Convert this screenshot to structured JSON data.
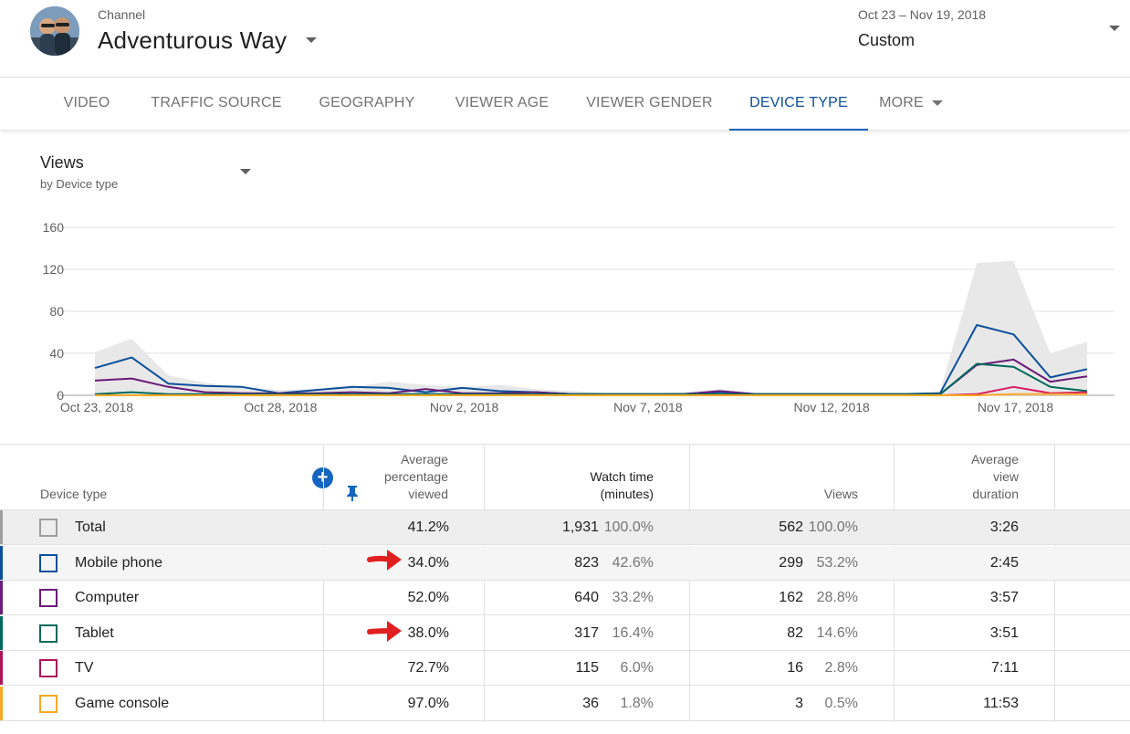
{
  "header": {
    "channel_label": "Channel",
    "channel_name": "Adventurous Way",
    "date_range": "Oct 23 – Nov 19, 2018",
    "date_mode": "Custom"
  },
  "tabs": [
    {
      "label": "VIDEO"
    },
    {
      "label": "TRAFFIC SOURCE"
    },
    {
      "label": "GEOGRAPHY"
    },
    {
      "label": "VIEWER AGE"
    },
    {
      "label": "VIEWER GENDER"
    },
    {
      "label": "DEVICE TYPE",
      "active": true
    },
    {
      "label": "MORE"
    }
  ],
  "metric": {
    "title": "Views",
    "subtitle": "by Device type"
  },
  "chart_data": {
    "type": "line",
    "title": "Views",
    "subtitle": "by Device type",
    "ylim": [
      0,
      160
    ],
    "yticks": [
      0,
      40,
      80,
      120,
      160
    ],
    "x_tick_labels": [
      "Oct 23, 2018",
      "Oct 28, 2018",
      "Nov 2, 2018",
      "Nov 7, 2018",
      "Nov 12, 2018",
      "Nov 17, 2018"
    ],
    "x": [
      "2018-10-23",
      "2018-10-24",
      "2018-10-25",
      "2018-10-26",
      "2018-10-27",
      "2018-10-28",
      "2018-10-29",
      "2018-10-30",
      "2018-10-31",
      "2018-11-01",
      "2018-11-02",
      "2018-11-03",
      "2018-11-04",
      "2018-11-05",
      "2018-11-06",
      "2018-11-07",
      "2018-11-08",
      "2018-11-09",
      "2018-11-10",
      "2018-11-11",
      "2018-11-12",
      "2018-11-13",
      "2018-11-14",
      "2018-11-15",
      "2018-11-16",
      "2018-11-17",
      "2018-11-18",
      "2018-11-19"
    ],
    "grid": true,
    "series": [
      {
        "name": "Total",
        "style": "area",
        "color": "#e8e8e8",
        "values": [
          41,
          54,
          19,
          12,
          8,
          5,
          6,
          8,
          13,
          10,
          8,
          10,
          6,
          4,
          2,
          2,
          3,
          6,
          2,
          2,
          2,
          2,
          2,
          4,
          126,
          128,
          40,
          51
        ]
      },
      {
        "name": "Mobile phone",
        "color": "#0b4f9c",
        "values": [
          26,
          36,
          11,
          9,
          8,
          2,
          5,
          8,
          7,
          3,
          7,
          4,
          3,
          1,
          1,
          1,
          1,
          3,
          1,
          1,
          1,
          1,
          1,
          2,
          67,
          58,
          17,
          25
        ]
      },
      {
        "name": "Computer",
        "color": "#6a1b7a",
        "values": [
          14,
          16,
          8,
          3,
          2,
          2,
          2,
          3,
          2,
          6,
          2,
          2,
          3,
          1,
          1,
          1,
          1,
          4,
          1,
          1,
          1,
          1,
          1,
          1,
          29,
          34,
          13,
          18
        ]
      },
      {
        "name": "Tablet",
        "color": "#00695c",
        "values": [
          1,
          3,
          1,
          1,
          1,
          1,
          1,
          1,
          1,
          1,
          1,
          1,
          1,
          1,
          1,
          1,
          1,
          1,
          1,
          1,
          1,
          1,
          1,
          1,
          30,
          27,
          8,
          4
        ]
      },
      {
        "name": "TV",
        "color": "#d81b60",
        "values": [
          0,
          0,
          0,
          0,
          0,
          0,
          0,
          0,
          0,
          0,
          0,
          0,
          0,
          0,
          0,
          0,
          0,
          0,
          0,
          0,
          0,
          0,
          0,
          0,
          1,
          8,
          2,
          3
        ]
      },
      {
        "name": "Game console",
        "color": "#f9a825",
        "values": [
          0,
          0,
          0,
          0,
          0,
          0,
          0,
          0,
          0,
          0,
          0,
          0,
          0,
          0,
          0,
          0,
          0,
          0,
          0,
          0,
          0,
          0,
          0,
          0,
          0,
          1,
          1,
          1
        ]
      }
    ]
  },
  "table": {
    "headers": {
      "device_type": "Device type",
      "avg_pct_viewed_1": "Average",
      "avg_pct_viewed_2": "percentage",
      "avg_pct_viewed_3": "viewed",
      "watch_time_1": "Watch time",
      "watch_time_2": "(minutes)",
      "views": "Views",
      "avg_dur_1": "Average",
      "avg_dur_2": "view",
      "avg_dur_3": "duration"
    },
    "rows": [
      {
        "name": "Total",
        "color": "#9e9e9e",
        "avg_pct": "41.2%",
        "watch": "1,931",
        "watch_pct": "100.0%",
        "views": "562",
        "views_pct": "100.0%",
        "duration": "3:26"
      },
      {
        "name": "Mobile phone",
        "color": "#0b4f9c",
        "avg_pct": "34.0%",
        "watch": "823",
        "watch_pct": "42.6%",
        "views": "299",
        "views_pct": "53.2%",
        "duration": "2:45"
      },
      {
        "name": "Computer",
        "color": "#6a1b7a",
        "avg_pct": "52.0%",
        "watch": "640",
        "watch_pct": "33.2%",
        "views": "162",
        "views_pct": "28.8%",
        "duration": "3:57"
      },
      {
        "name": "Tablet",
        "color": "#00695c",
        "avg_pct": "38.0%",
        "watch": "317",
        "watch_pct": "16.4%",
        "views": "82",
        "views_pct": "14.6%",
        "duration": "3:51"
      },
      {
        "name": "TV",
        "color": "#ad1457",
        "avg_pct": "72.7%",
        "watch": "115",
        "watch_pct": "6.0%",
        "views": "16",
        "views_pct": "2.8%",
        "duration": "7:11"
      },
      {
        "name": "Game console",
        "color": "#f9a825",
        "avg_pct": "97.0%",
        "watch": "36",
        "watch_pct": "1.8%",
        "views": "3",
        "views_pct": "0.5%",
        "duration": "11:53"
      }
    ]
  },
  "annotations": {
    "arrow_color": "#e02020"
  }
}
